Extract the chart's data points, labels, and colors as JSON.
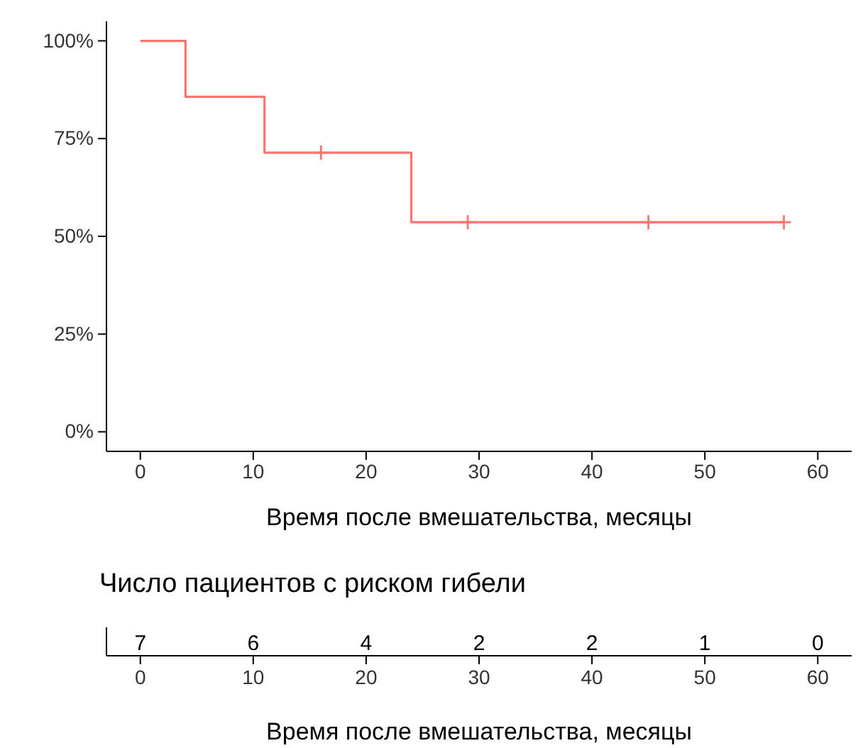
{
  "chart_data": [
    {
      "type": "step",
      "xlabel": "Время после вмешательства, месяцы",
      "xlim": [
        -3,
        63
      ],
      "xticks": [
        0,
        10,
        20,
        30,
        40,
        50,
        60
      ],
      "ylim": [
        -5,
        105
      ],
      "yticks": [
        {
          "value": 0,
          "label": "0%"
        },
        {
          "value": 25,
          "label": "25%"
        },
        {
          "value": 50,
          "label": "50%"
        },
        {
          "value": 75,
          "label": "75%"
        },
        {
          "value": 100,
          "label": "100%"
        }
      ],
      "series": [
        {
          "type": "step",
          "color": "#f8766d",
          "x": [
            0,
            4,
            11,
            24,
            57
          ],
          "values": [
            100,
            85.7,
            71.4,
            53.6,
            53.6
          ]
        },
        {
          "type": "scatter",
          "marker": "cross",
          "color": "#f8766d",
          "x": [
            16,
            29,
            45,
            57
          ],
          "values": [
            71.4,
            53.6,
            53.6,
            53.6
          ]
        }
      ]
    },
    {
      "type": "heatmap",
      "title": "Число пациентов с риском гибели",
      "xlabel": "Время после вмешательства, месяцы",
      "categories": [
        "0",
        "10",
        "20",
        "30",
        "40",
        "50",
        "60"
      ],
      "y_categories": [
        null
      ],
      "cells": [
        [
          7,
          6,
          4,
          2,
          2,
          1,
          0
        ]
      ],
      "data_labels": true
    }
  ]
}
